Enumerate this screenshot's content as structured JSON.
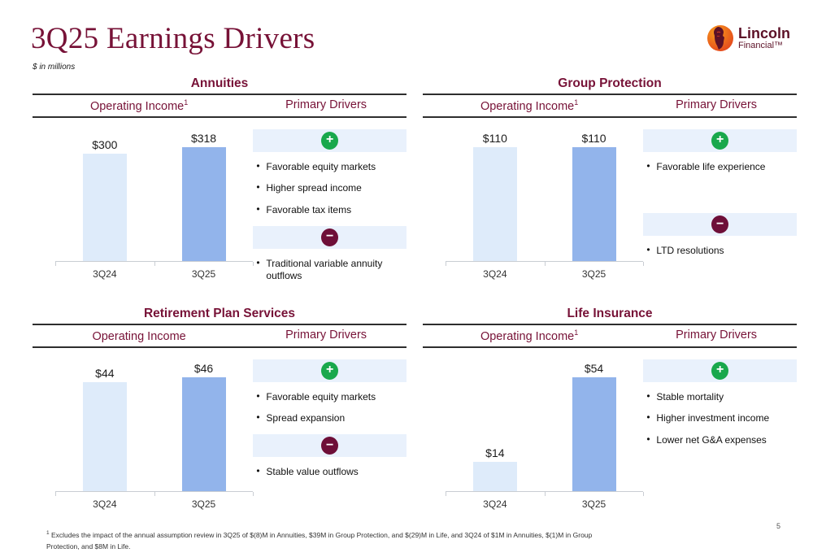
{
  "slide": {
    "title": "3Q25 Earnings Drivers",
    "subtitle": "$ in millions",
    "page_number": "5",
    "footnote": {
      "sup": "1",
      "text": "Excludes the impact of the annual assumption review in 3Q25 of $(8)M in Annuities, $39M in Group Protection, and $(29)M in Life, and 3Q24 of $1M in Annuities, $(1)M in Group Protection, and $8M in Life."
    },
    "logo": {
      "name": "Lincoln",
      "subname": "Financial™"
    }
  },
  "colors": {
    "accent_maroon": "#771237",
    "bar_3q24": "#DEEBFA",
    "bar_3q25": "#92B4EB",
    "driver_band_bg": "#E9F1FC",
    "positive_green": "#19A84C",
    "negative_maroon": "#6E0F38",
    "logo_orange": "#F4701F",
    "logo_maroon": "#5C1127"
  },
  "chart_data": [
    {
      "type": "bar",
      "title": "Annuities Operating Income ($M)",
      "categories": [
        "3Q24",
        "3Q25"
      ],
      "values": [
        300,
        318
      ],
      "value_labels": [
        "$300",
        "$318"
      ],
      "ylim": [
        0,
        318
      ],
      "grid": false,
      "legend": false
    },
    {
      "type": "bar",
      "title": "Group Protection Operating Income ($M)",
      "categories": [
        "3Q24",
        "3Q25"
      ],
      "values": [
        110,
        110
      ],
      "value_labels": [
        "$110",
        "$110"
      ],
      "ylim": [
        0,
        110
      ],
      "grid": false,
      "legend": false
    },
    {
      "type": "bar",
      "title": "Retirement Plan Services Operating Income ($M)",
      "categories": [
        "3Q24",
        "3Q25"
      ],
      "values": [
        44,
        46
      ],
      "value_labels": [
        "$44",
        "$46"
      ],
      "ylim": [
        0,
        46
      ],
      "grid": false,
      "legend": false
    },
    {
      "type": "bar",
      "title": "Life Insurance Operating Income ($M)",
      "categories": [
        "3Q24",
        "3Q25"
      ],
      "values": [
        14,
        54
      ],
      "value_labels": [
        "$14",
        "$54"
      ],
      "ylim": [
        0,
        54
      ],
      "grid": false,
      "legend": false
    }
  ],
  "quadrants": [
    {
      "title": "Annuities",
      "col1_label": "Operating Income",
      "col1_sup": "1",
      "col2_label": "Primary Drivers",
      "chart_index": 0,
      "drivers": [
        {
          "sign": "positive",
          "icon": "plus-icon",
          "items": [
            "Favorable equity markets",
            "Higher spread income",
            "Favorable tax items"
          ]
        },
        {
          "sign": "negative",
          "icon": "minus-icon",
          "items": [
            "Traditional variable annuity outflows"
          ]
        }
      ]
    },
    {
      "title": "Group Protection",
      "col1_label": "Operating Income",
      "col1_sup": "1",
      "col2_label": "Primary Drivers",
      "chart_index": 1,
      "drivers": [
        {
          "sign": "positive",
          "icon": "plus-icon",
          "items": [
            "Favorable life experience"
          ]
        },
        {
          "sign": "negative",
          "icon": "minus-icon",
          "items": [
            "LTD resolutions"
          ]
        }
      ]
    },
    {
      "title": "Retirement Plan Services",
      "col1_label": "Operating Income",
      "col1_sup": "",
      "col2_label": "Primary Drivers",
      "chart_index": 2,
      "drivers": [
        {
          "sign": "positive",
          "icon": "plus-icon",
          "items": [
            "Favorable equity markets",
            "Spread expansion"
          ]
        },
        {
          "sign": "negative",
          "icon": "minus-icon",
          "items": [
            "Stable value outflows"
          ]
        }
      ]
    },
    {
      "title": "Life Insurance",
      "col1_label": "Operating Income",
      "col1_sup": "1",
      "col2_label": "Primary Drivers",
      "chart_index": 3,
      "drivers": [
        {
          "sign": "positive",
          "icon": "plus-icon",
          "items": [
            "Stable mortality",
            "Higher investment income",
            "Lower net G&A expenses"
          ]
        }
      ]
    }
  ]
}
